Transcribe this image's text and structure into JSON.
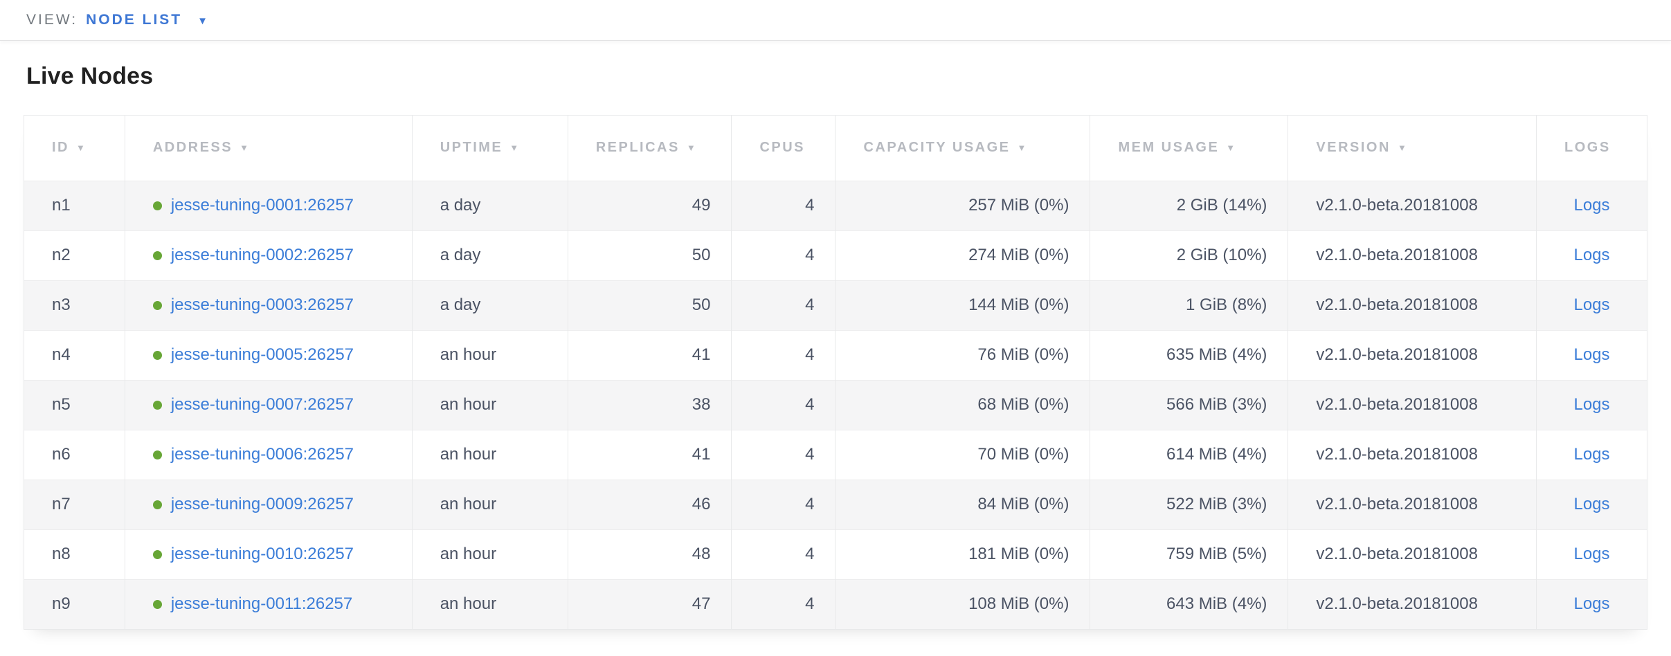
{
  "view_bar": {
    "label": "VIEW:",
    "selected": "NODE LIST"
  },
  "page_title": "Live Nodes",
  "icons": {
    "dropdown_caret": "▼",
    "sort_desc": "▼",
    "healthy_dot": "green-circle"
  },
  "colors": {
    "accent_blue": "#3e77d4",
    "link_blue": "#3b7dd8",
    "healthy_green": "#67a636",
    "header_gray": "#b7bac0",
    "cell_text": "#4b5364",
    "row_alt_bg": "#f5f5f6",
    "border": "#e8e9ea",
    "topbar_text": "#72787e",
    "title_text": "#212121"
  },
  "table": {
    "columns": [
      {
        "key": "id",
        "label": "ID",
        "sortable": true,
        "align": "left"
      },
      {
        "key": "address",
        "label": "ADDRESS",
        "sortable": true,
        "align": "left"
      },
      {
        "key": "uptime",
        "label": "UPTIME",
        "sortable": true,
        "align": "left"
      },
      {
        "key": "replicas",
        "label": "REPLICAS",
        "sortable": true,
        "align": "right"
      },
      {
        "key": "cpus",
        "label": "CPUS",
        "sortable": false,
        "align": "right"
      },
      {
        "key": "capacity",
        "label": "CAPACITY USAGE",
        "sortable": true,
        "align": "right"
      },
      {
        "key": "mem",
        "label": "MEM USAGE",
        "sortable": true,
        "align": "right"
      },
      {
        "key": "version",
        "label": "VERSION",
        "sortable": true,
        "align": "left"
      },
      {
        "key": "logs",
        "label": "LOGS",
        "sortable": false,
        "align": "center"
      }
    ],
    "rows": [
      {
        "id": "n1",
        "address": "jesse-tuning-0001:26257",
        "status": "healthy",
        "uptime": "a day",
        "replicas": "49",
        "cpus": "4",
        "capacity": "257 MiB (0%)",
        "mem": "2 GiB (14%)",
        "version": "v2.1.0-beta.20181008",
        "logs": "Logs"
      },
      {
        "id": "n2",
        "address": "jesse-tuning-0002:26257",
        "status": "healthy",
        "uptime": "a day",
        "replicas": "50",
        "cpus": "4",
        "capacity": "274 MiB (0%)",
        "mem": "2 GiB (10%)",
        "version": "v2.1.0-beta.20181008",
        "logs": "Logs"
      },
      {
        "id": "n3",
        "address": "jesse-tuning-0003:26257",
        "status": "healthy",
        "uptime": "a day",
        "replicas": "50",
        "cpus": "4",
        "capacity": "144 MiB (0%)",
        "mem": "1 GiB (8%)",
        "version": "v2.1.0-beta.20181008",
        "logs": "Logs"
      },
      {
        "id": "n4",
        "address": "jesse-tuning-0005:26257",
        "status": "healthy",
        "uptime": "an hour",
        "replicas": "41",
        "cpus": "4",
        "capacity": "76 MiB (0%)",
        "mem": "635 MiB (4%)",
        "version": "v2.1.0-beta.20181008",
        "logs": "Logs"
      },
      {
        "id": "n5",
        "address": "jesse-tuning-0007:26257",
        "status": "healthy",
        "uptime": "an hour",
        "replicas": "38",
        "cpus": "4",
        "capacity": "68 MiB (0%)",
        "mem": "566 MiB (3%)",
        "version": "v2.1.0-beta.20181008",
        "logs": "Logs"
      },
      {
        "id": "n6",
        "address": "jesse-tuning-0006:26257",
        "status": "healthy",
        "uptime": "an hour",
        "replicas": "41",
        "cpus": "4",
        "capacity": "70 MiB (0%)",
        "mem": "614 MiB (4%)",
        "version": "v2.1.0-beta.20181008",
        "logs": "Logs"
      },
      {
        "id": "n7",
        "address": "jesse-tuning-0009:26257",
        "status": "healthy",
        "uptime": "an hour",
        "replicas": "46",
        "cpus": "4",
        "capacity": "84 MiB (0%)",
        "mem": "522 MiB (3%)",
        "version": "v2.1.0-beta.20181008",
        "logs": "Logs"
      },
      {
        "id": "n8",
        "address": "jesse-tuning-0010:26257",
        "status": "healthy",
        "uptime": "an hour",
        "replicas": "48",
        "cpus": "4",
        "capacity": "181 MiB (0%)",
        "mem": "759 MiB (5%)",
        "version": "v2.1.0-beta.20181008",
        "logs": "Logs"
      },
      {
        "id": "n9",
        "address": "jesse-tuning-0011:26257",
        "status": "healthy",
        "uptime": "an hour",
        "replicas": "47",
        "cpus": "4",
        "capacity": "108 MiB (0%)",
        "mem": "643 MiB (4%)",
        "version": "v2.1.0-beta.20181008",
        "logs": "Logs"
      }
    ]
  }
}
